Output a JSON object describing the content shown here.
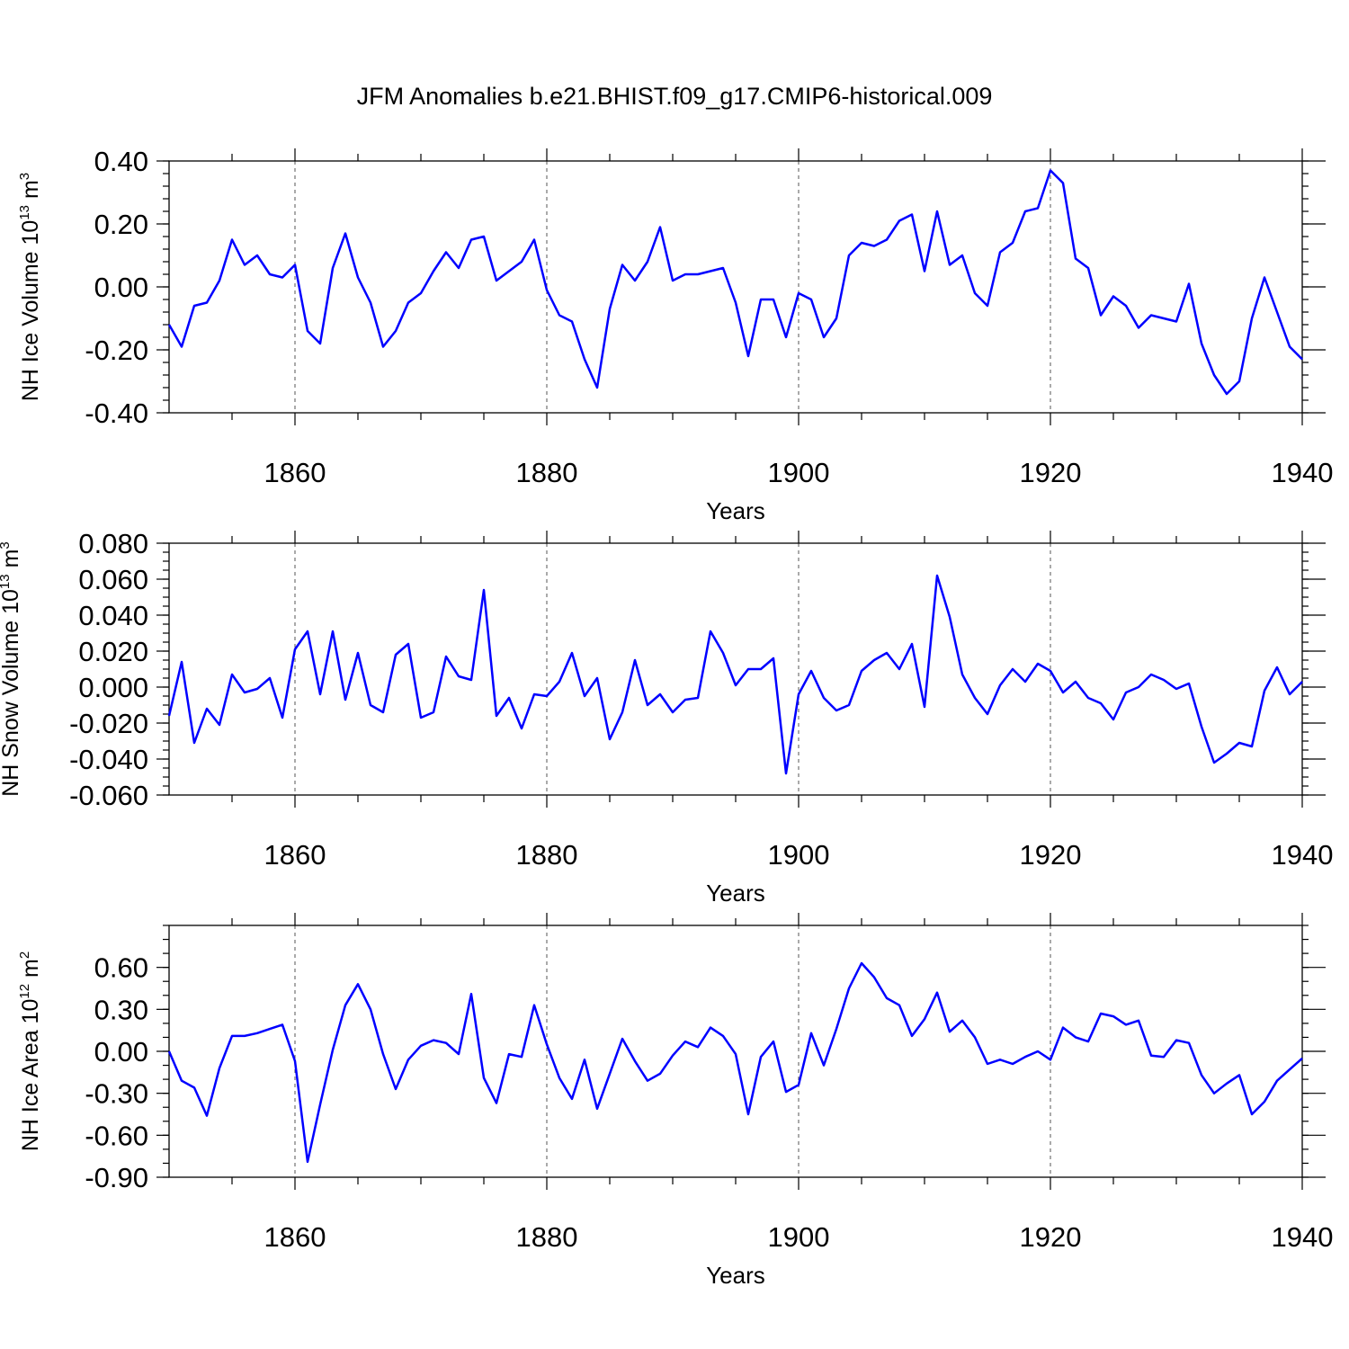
{
  "title": "JFM Anomalies b.e21.BHIST.f09_g17.CMIP6-historical.009",
  "chart_data": [
    {
      "type": "line",
      "ylabel": {
        "prefix": "NH Ice Volume 10",
        "exp": "13",
        "unit": " m",
        "unit_exp": "3"
      },
      "xlabel": "Years",
      "xlim": [
        1850,
        1940
      ],
      "ylim": [
        -0.4,
        0.4
      ],
      "xticks": [
        1860,
        1880,
        1900,
        1920,
        1940
      ],
      "xtick_labels": [
        "1860",
        "1880",
        "1900",
        "1920",
        "1940"
      ],
      "yticks": [
        -0.4,
        -0.2,
        0.0,
        0.2,
        0.4
      ],
      "ytick_labels": [
        "-0.40",
        "-0.20",
        "0.00",
        "0.20",
        "0.40"
      ],
      "yminor_step": 0.04,
      "grid_x": [
        1860,
        1880,
        1900,
        1920
      ],
      "series": [
        {
          "name": "NH Ice Volume",
          "color": "#0000ff",
          "x_start": 1850,
          "values": [
            -0.12,
            -0.19,
            -0.06,
            -0.05,
            0.02,
            0.15,
            0.07,
            0.1,
            0.04,
            0.03,
            0.07,
            -0.14,
            -0.18,
            0.06,
            0.17,
            0.03,
            -0.05,
            -0.19,
            -0.14,
            -0.05,
            -0.02,
            0.05,
            0.11,
            0.06,
            0.15,
            0.16,
            0.02,
            0.05,
            0.08,
            0.15,
            -0.01,
            -0.09,
            -0.11,
            -0.23,
            -0.32,
            -0.07,
            0.07,
            0.02,
            0.08,
            0.19,
            0.02,
            0.04,
            0.04,
            0.05,
            0.06,
            -0.05,
            -0.22,
            -0.04,
            -0.04,
            -0.16,
            -0.02,
            -0.04,
            -0.16,
            -0.1,
            0.1,
            0.14,
            0.13,
            0.15,
            0.21,
            0.23,
            0.05,
            0.24,
            0.07,
            0.1,
            -0.02,
            -0.06,
            0.11,
            0.14,
            0.24,
            0.25,
            0.37,
            0.33,
            0.09,
            0.06,
            -0.09,
            -0.03,
            -0.06,
            -0.13,
            -0.09,
            -0.1,
            -0.11,
            0.01,
            -0.18,
            -0.28,
            -0.34,
            -0.3,
            -0.1,
            0.03,
            -0.08,
            -0.19,
            -0.23
          ]
        }
      ]
    },
    {
      "type": "line",
      "ylabel": {
        "prefix": "NH Snow Volume 10",
        "exp": "13",
        "unit": " m",
        "unit_exp": "3"
      },
      "xlabel": "Years",
      "xlim": [
        1850,
        1940
      ],
      "ylim": [
        -0.06,
        0.08
      ],
      "xticks": [
        1860,
        1880,
        1900,
        1920,
        1940
      ],
      "xtick_labels": [
        "1860",
        "1880",
        "1900",
        "1920",
        "1940"
      ],
      "yticks": [
        -0.06,
        -0.04,
        -0.02,
        0.0,
        0.02,
        0.04,
        0.06,
        0.08
      ],
      "ytick_labels": [
        "-0.060",
        "-0.040",
        "-0.020",
        "0.000",
        "0.020",
        "0.040",
        "0.060",
        "0.080"
      ],
      "yminor_step": 0.005,
      "grid_x": [
        1860,
        1880,
        1900,
        1920
      ],
      "series": [
        {
          "name": "NH Snow Volume",
          "color": "#0000ff",
          "x_start": 1850,
          "values": [
            -0.016,
            0.014,
            -0.031,
            -0.012,
            -0.021,
            0.007,
            -0.003,
            -0.001,
            0.005,
            -0.017,
            0.021,
            0.031,
            -0.004,
            0.031,
            -0.007,
            0.019,
            -0.01,
            -0.014,
            0.018,
            0.024,
            -0.017,
            -0.014,
            0.017,
            0.006,
            0.004,
            0.054,
            -0.016,
            -0.006,
            -0.023,
            -0.004,
            -0.005,
            0.003,
            0.019,
            -0.005,
            0.005,
            -0.029,
            -0.014,
            0.015,
            -0.01,
            -0.004,
            -0.014,
            -0.007,
            -0.006,
            0.031,
            0.019,
            0.001,
            0.01,
            0.01,
            0.016,
            -0.048,
            -0.004,
            0.009,
            -0.006,
            -0.013,
            -0.01,
            0.009,
            0.015,
            0.019,
            0.01,
            0.024,
            -0.011,
            0.062,
            0.039,
            0.007,
            -0.006,
            -0.015,
            0.001,
            0.01,
            0.003,
            0.013,
            0.009,
            -0.003,
            0.003,
            -0.006,
            -0.009,
            -0.018,
            -0.003,
            0.0,
            0.007,
            0.004,
            -0.001,
            0.002,
            -0.022,
            -0.042,
            -0.037,
            -0.031,
            -0.033,
            -0.002,
            0.011,
            -0.004,
            0.003
          ]
        }
      ]
    },
    {
      "type": "line",
      "ylabel": {
        "prefix": "NH Ice Area 10",
        "exp": "12",
        "unit": " m",
        "unit_exp": "2"
      },
      "xlabel": "Years",
      "xlim": [
        1850,
        1940
      ],
      "ylim": [
        -0.9,
        0.9
      ],
      "xticks": [
        1860,
        1880,
        1900,
        1920,
        1940
      ],
      "xtick_labels": [
        "1860",
        "1880",
        "1900",
        "1920",
        "1940"
      ],
      "yticks": [
        -0.9,
        -0.6,
        -0.3,
        0.0,
        0.3,
        0.6
      ],
      "ytick_labels": [
        "-0.90",
        "-0.60",
        "-0.30",
        "0.00",
        "0.30",
        "0.60"
      ],
      "yminor_step": 0.1,
      "grid_x": [
        1860,
        1880,
        1900,
        1920
      ],
      "series": [
        {
          "name": "NH Ice Area",
          "color": "#0000ff",
          "x_start": 1850,
          "values": [
            0.0,
            -0.21,
            -0.26,
            -0.46,
            -0.12,
            0.11,
            0.11,
            0.13,
            0.16,
            0.19,
            -0.07,
            -0.79,
            -0.38,
            0.01,
            0.33,
            0.48,
            0.3,
            -0.02,
            -0.27,
            -0.06,
            0.04,
            0.08,
            0.06,
            -0.02,
            0.41,
            -0.19,
            -0.37,
            -0.02,
            -0.04,
            0.33,
            0.05,
            -0.19,
            -0.34,
            -0.06,
            -0.41,
            -0.16,
            0.09,
            -0.07,
            -0.21,
            -0.16,
            -0.03,
            0.07,
            0.03,
            0.17,
            0.11,
            -0.02,
            -0.45,
            -0.04,
            0.07,
            -0.29,
            -0.24,
            0.13,
            -0.1,
            0.16,
            0.45,
            0.63,
            0.53,
            0.38,
            0.33,
            0.11,
            0.23,
            0.42,
            0.14,
            0.22,
            0.1,
            -0.09,
            -0.06,
            -0.09,
            -0.04,
            0.0,
            -0.06,
            0.17,
            0.1,
            0.07,
            0.27,
            0.25,
            0.19,
            0.22,
            -0.03,
            -0.04,
            0.08,
            0.06,
            -0.17,
            -0.3,
            -0.23,
            -0.17,
            -0.45,
            -0.36,
            -0.21,
            -0.13,
            -0.05
          ]
        }
      ]
    }
  ]
}
